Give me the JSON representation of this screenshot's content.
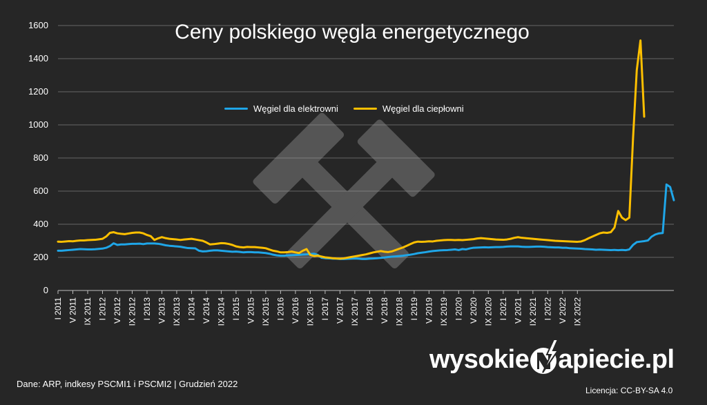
{
  "colors": {
    "background": "#262626",
    "grid": "#a6a6a6",
    "text": "#ffffff",
    "series_elektrownie": "#1fa6e8",
    "series_cieplownie": "#ffc000",
    "watermark": "#555555"
  },
  "watermark_icon": "hammer-and-pick-icon",
  "brand": {
    "text_left": "wysokie",
    "text_right": "apiecie.pl",
    "logo_icon": "lightning-n-icon"
  },
  "source_text": "Dane: ARP, indkesy PSCMI1 i PSCMI2  |  Grudzień 2022",
  "license_text": "Licencja: CC-BY-SA 4.0",
  "chart_data": {
    "type": "line",
    "title": "Ceny polskiego węgla energetycznego",
    "xlabel": "",
    "ylabel": "",
    "ylim": [
      0,
      1600
    ],
    "yticks": [
      0,
      200,
      400,
      600,
      800,
      1000,
      1200,
      1400,
      1600
    ],
    "grid": true,
    "legend_position": "top-center",
    "x_start_month": "2011-01",
    "x_tick_labels": [
      "I 2011",
      "V 2011",
      "IX 2011",
      "I 2012",
      "V 2012",
      "IX 2012",
      "I 2013",
      "V 2013",
      "IX 2013",
      "I 2014",
      "V 2014",
      "IX 2014",
      "I 2015",
      "V 2015",
      "IX 2015",
      "I 2016",
      "V 2016",
      "IX 2016",
      "I 2017",
      "V 2017",
      "IX 2017",
      "I 2018",
      "V 2018",
      "IX 2018",
      "I 2019",
      "V 2019",
      "IX 2019",
      "I 2020",
      "V 2020",
      "IX 2020",
      "I 2021",
      "V 2021",
      "IX 2021",
      "I 2022",
      "V 2022",
      "IX 2022"
    ],
    "series": [
      {
        "name": "Węgiel dla elektrowni",
        "color": "#1fa6e8",
        "values": [
          240,
          240,
          242,
          244,
          246,
          248,
          250,
          249,
          248,
          248,
          249,
          251,
          253,
          258,
          268,
          285,
          275,
          278,
          278,
          280,
          282,
          282,
          283,
          280,
          284,
          284,
          284,
          282,
          278,
          273,
          270,
          268,
          266,
          264,
          260,
          256,
          255,
          254,
          240,
          236,
          237,
          240,
          242,
          242,
          240,
          238,
          236,
          234,
          235,
          233,
          230,
          232,
          232,
          230,
          230,
          228,
          226,
          222,
          216,
          212,
          210,
          210,
          212,
          213,
          214,
          215,
          217,
          218,
          220,
          222,
          215,
          198,
          195,
          194,
          192,
          192,
          190,
          190,
          191,
          192,
          193,
          192,
          190,
          190,
          192,
          193,
          195,
          197,
          199,
          202,
          204,
          206,
          208,
          210,
          213,
          216,
          220,
          225,
          228,
          231,
          235,
          238,
          240,
          242,
          243,
          244,
          246,
          248,
          244,
          250,
          248,
          254,
          258,
          259,
          260,
          261,
          260,
          261,
          262,
          262,
          263,
          265,
          266,
          266,
          266,
          264,
          263,
          263,
          264,
          265,
          265,
          264,
          262,
          261,
          260,
          260,
          258,
          258,
          255,
          254,
          253,
          252,
          250,
          249,
          248,
          246,
          247,
          246,
          245,
          244,
          245,
          243,
          245,
          243,
          248,
          275,
          292,
          295,
          298,
          302,
          325,
          338,
          345,
          347,
          640,
          625,
          545
        ]
      },
      {
        "name": "Węgiel dla ciepłowni",
        "color": "#ffc000",
        "values": [
          295,
          294,
          296,
          298,
          297,
          300,
          302,
          302,
          304,
          305,
          306,
          309,
          312,
          326,
          348,
          352,
          345,
          342,
          340,
          344,
          348,
          350,
          350,
          345,
          335,
          328,
          305,
          315,
          322,
          316,
          312,
          310,
          308,
          305,
          308,
          310,
          312,
          308,
          304,
          300,
          290,
          278,
          280,
          283,
          286,
          285,
          281,
          275,
          266,
          262,
          260,
          263,
          262,
          262,
          260,
          258,
          255,
          247,
          240,
          236,
          230,
          230,
          232,
          235,
          230,
          226,
          240,
          250,
          215,
          208,
          210,
          205,
          200,
          198,
          195,
          193,
          192,
          194,
          198,
          202,
          206,
          210,
          214,
          218,
          224,
          230,
          234,
          238,
          234,
          232,
          236,
          244,
          252,
          260,
          270,
          280,
          290,
          295,
          294,
          295,
          297,
          296,
          300,
          302,
          304,
          305,
          305,
          304,
          305,
          304,
          306,
          308,
          310,
          314,
          316,
          314,
          312,
          310,
          308,
          307,
          306,
          308,
          312,
          318,
          322,
          318,
          316,
          314,
          312,
          310,
          308,
          306,
          304,
          302,
          300,
          299,
          298,
          297,
          296,
          295,
          294,
          296,
          304,
          315,
          325,
          335,
          345,
          350,
          348,
          352,
          380,
          480,
          440,
          425,
          440,
          920,
          1330,
          1510,
          1050
        ]
      }
    ]
  }
}
